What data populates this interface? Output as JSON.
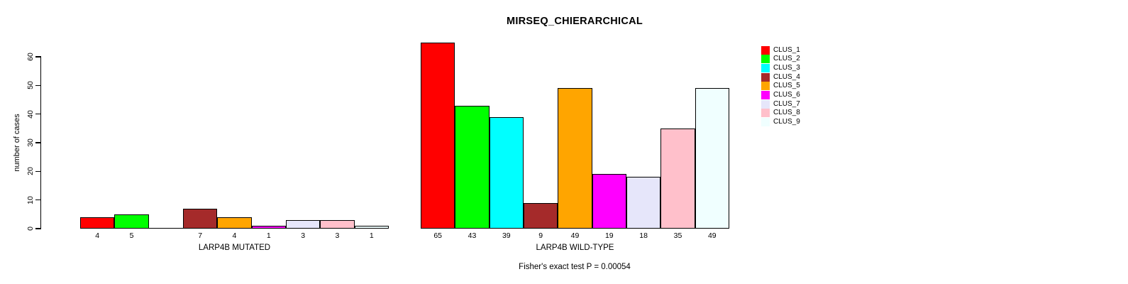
{
  "chart_data": {
    "type": "bar",
    "title": "MIRSEQ_CHIERARCHICAL",
    "ylabel": "number of cases",
    "yticks": [
      "0",
      "10",
      "20",
      "30",
      "40",
      "50",
      "60"
    ],
    "ylim": [
      0,
      66
    ],
    "grid": false,
    "legend_position": "right-outside",
    "clusters": [
      {
        "name": "CLUS_1",
        "color": "#FF0000"
      },
      {
        "name": "CLUS_2",
        "color": "#00FF00"
      },
      {
        "name": "CLUS_3",
        "color": "#00FFFF"
      },
      {
        "name": "CLUS_4",
        "color": "#A52A2A"
      },
      {
        "name": "CLUS_5",
        "color": "#FFA500"
      },
      {
        "name": "CLUS_6",
        "color": "#FF00FF"
      },
      {
        "name": "CLUS_7",
        "color": "#E6E6FA"
      },
      {
        "name": "CLUS_8",
        "color": "#FFC0CB"
      },
      {
        "name": "CLUS_9",
        "color": "#F0FFFF"
      }
    ],
    "groups": [
      {
        "label": "LARP4B MUTATED",
        "values": [
          4,
          5,
          0,
          7,
          4,
          1,
          3,
          3,
          1
        ],
        "bar_labels": [
          "4",
          "5",
          "",
          "7",
          "4",
          "1",
          "3",
          "3",
          "1"
        ]
      },
      {
        "label": "LARP4B WILD-TYPE",
        "values": [
          65,
          43,
          39,
          9,
          49,
          19,
          18,
          35,
          49
        ],
        "bar_labels": [
          "65",
          "43",
          "39",
          "9",
          "49",
          "19",
          "18",
          "35",
          "49"
        ]
      }
    ],
    "annotation": "Fisher's exact test P = 0.00054"
  }
}
